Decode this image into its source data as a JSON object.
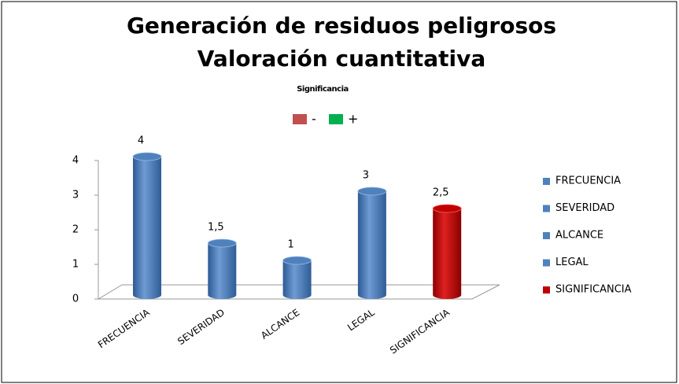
{
  "chart_data": {
    "type": "bar",
    "title": "Generación de residuos peligrosos",
    "subtitle": "Valoración cuantitativa",
    "annotation": "Significancia",
    "scale_labels": [
      {
        "label": "-",
        "color": "#c0504d"
      },
      {
        "label": "+",
        "color": "#00b050"
      }
    ],
    "categories": [
      "FRECUENCIA",
      "SEVERIDAD",
      "ALCANCE",
      "LEGAL",
      "SIGNIFICANCIA"
    ],
    "values": [
      4,
      1.5,
      1,
      3,
      2.5
    ],
    "value_labels": [
      "4",
      "1,5",
      "1",
      "3",
      "2,5"
    ],
    "colors": [
      "#4f81bd",
      "#4f81bd",
      "#4f81bd",
      "#4f81bd",
      "#c00000"
    ],
    "ylim": [
      0,
      4
    ],
    "yticks": [
      0,
      1,
      2,
      3,
      4
    ],
    "legend": "right"
  }
}
